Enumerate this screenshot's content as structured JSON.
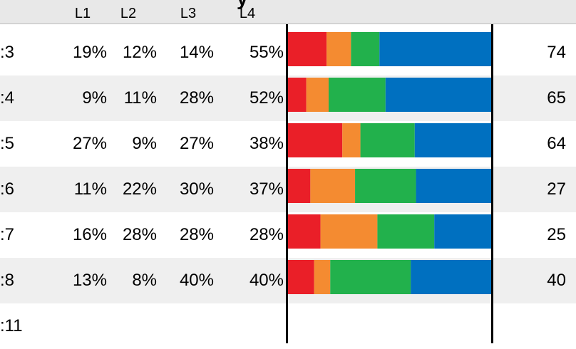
{
  "header": {
    "title_fragment": "y",
    "columns": [
      "L1",
      "L2",
      "L3",
      "L4"
    ]
  },
  "colors": {
    "L1": "#ea1f28",
    "L2": "#f48b31",
    "L3": "#22b14c",
    "L4": "#0070c0",
    "header_bg": "#e8e8e8",
    "row_alt_bg": "#efefef"
  },
  "rows": [
    {
      "label": ":3",
      "l1": "19%",
      "l2": "12%",
      "l3": "14%",
      "l4": "55%",
      "count": "74"
    },
    {
      "label": ":4",
      "l1": "9%",
      "l2": "11%",
      "l3": "28%",
      "l4": "52%",
      "count": "65"
    },
    {
      "label": ":5",
      "l1": "27%",
      "l2": "9%",
      "l3": "27%",
      "l4": "38%",
      "count": "64"
    },
    {
      "label": ":6",
      "l1": "11%",
      "l2": "22%",
      "l3": "30%",
      "l4": "37%",
      "count": "27"
    },
    {
      "label": ":7",
      "l1": "16%",
      "l2": "28%",
      "l3": "28%",
      "l4": "28%",
      "count": "25"
    },
    {
      "label": ":8",
      "l1": "13%",
      "l2": "8%",
      "l3": "40%",
      "l4": "40%",
      "count": "40"
    },
    {
      "label": ":11",
      "l1": "",
      "l2": "",
      "l3": "",
      "l4": "",
      "count": ""
    }
  ],
  "chart_data": {
    "type": "bar",
    "stacked": true,
    "orientation": "horizontal",
    "categories": [
      ":3",
      ":4",
      ":5",
      ":6",
      ":7",
      ":8",
      ":11"
    ],
    "series": [
      {
        "name": "L1",
        "values": [
          19,
          9,
          27,
          11,
          16,
          13,
          null
        ]
      },
      {
        "name": "L2",
        "values": [
          12,
          11,
          9,
          22,
          28,
          8,
          null
        ]
      },
      {
        "name": "L3",
        "values": [
          14,
          28,
          27,
          30,
          28,
          40,
          null
        ]
      },
      {
        "name": "L4",
        "values": [
          55,
          52,
          38,
          37,
          28,
          40,
          null
        ]
      }
    ],
    "counts": [
      74,
      65,
      64,
      27,
      25,
      40,
      null
    ],
    "xlim": [
      0,
      100
    ],
    "grid": false
  }
}
